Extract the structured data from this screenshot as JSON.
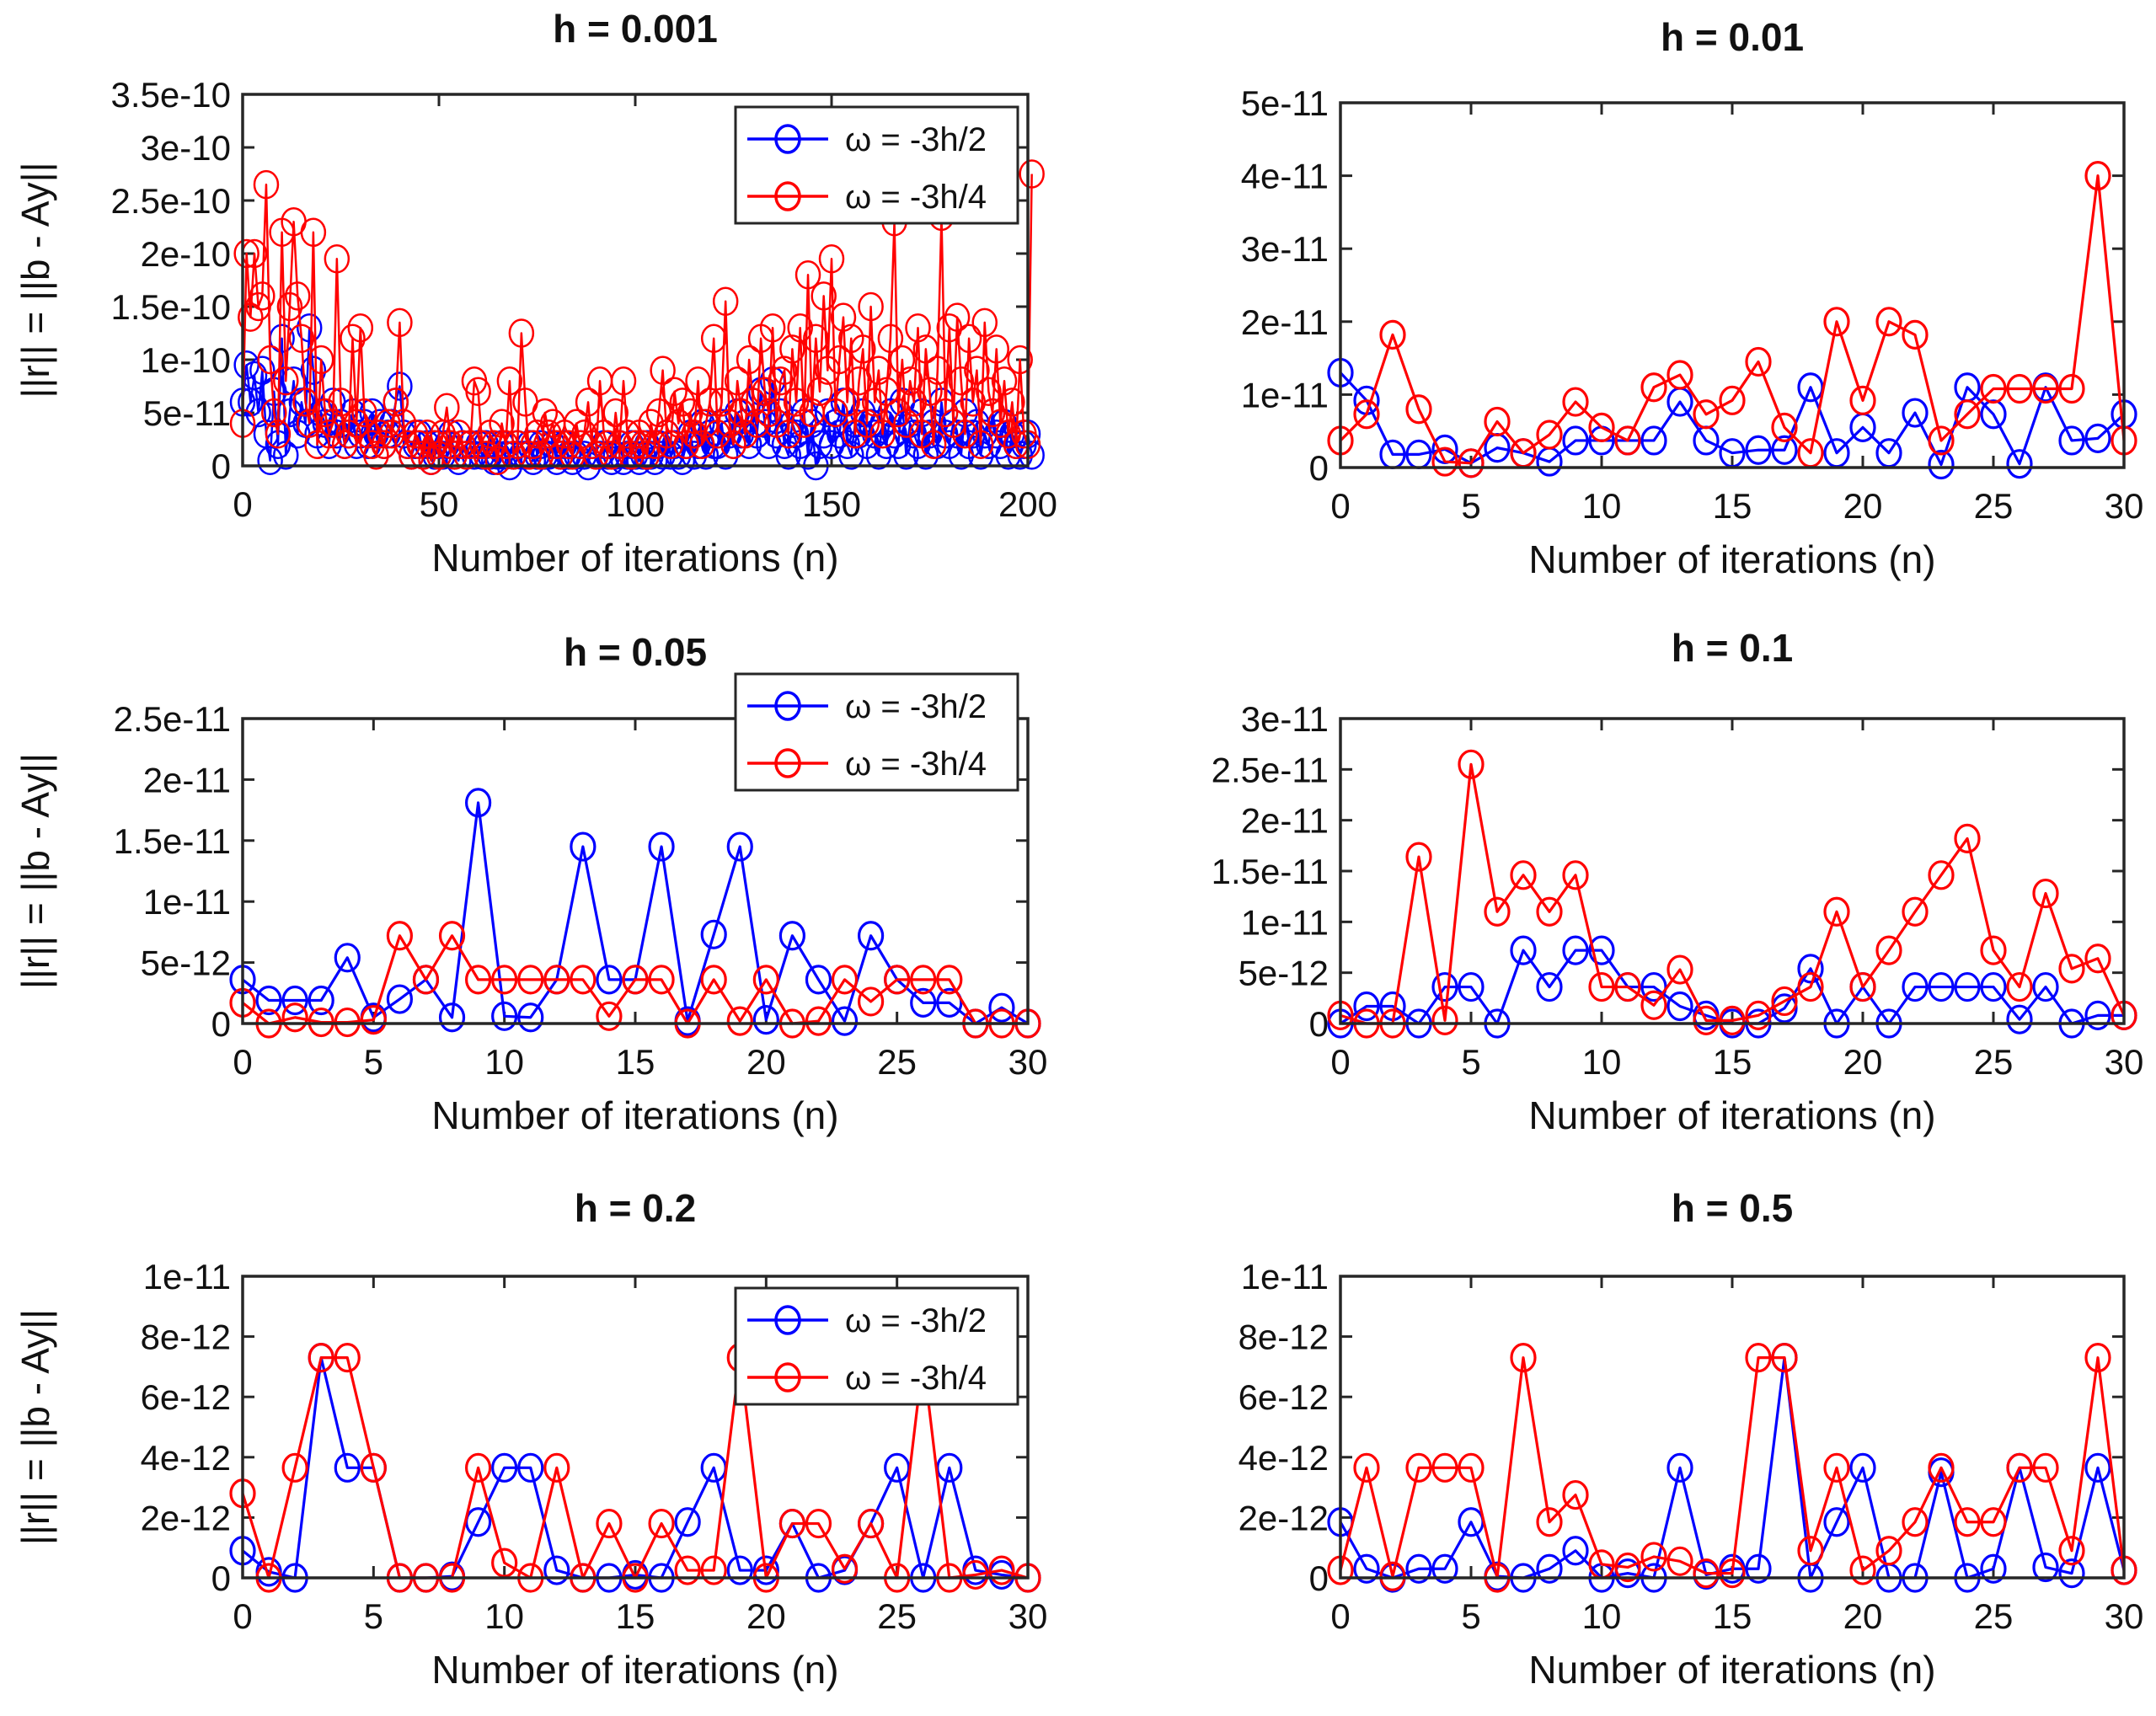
{
  "colors": {
    "series1": "#0000ff",
    "series2": "#ff0000",
    "axis": "#262626"
  },
  "legend": [
    "ω = -3h/2",
    "ω = -3h/4"
  ],
  "xlabel": "Number of iterations (n)",
  "ylabel": "||r|| = ||b - Ay||",
  "chart_data": [
    {
      "type": "line",
      "title": "h = 0.001",
      "xlim": [
        0,
        200
      ],
      "ylim": [
        0,
        3.5e-10
      ],
      "scale": 1e-11,
      "xticks": [
        "0",
        "50",
        "100",
        "150",
        "200"
      ],
      "xtick_values": [
        0,
        50,
        100,
        150,
        200
      ],
      "yticks": [
        "0",
        "5e-11",
        "1e-10",
        "1.5e-10",
        "2e-10",
        "2.5e-10",
        "3e-10",
        "3.5e-10"
      ],
      "ytick_values": [
        0,
        5,
        10,
        15,
        20,
        25,
        30,
        35
      ],
      "show_ylabel": true,
      "legend": "top-right",
      "series": [
        {
          "name": "ω = -3h/2",
          "values_x1e-11": [
            6,
            9.5,
            6,
            8.5,
            5,
            9,
            3,
            0.5,
            7,
            2,
            12,
            1,
            5,
            8,
            3,
            6,
            4,
            13,
            9,
            3,
            5,
            4,
            2,
            6,
            3,
            4,
            2,
            3,
            5,
            2,
            3,
            4,
            2,
            5,
            3,
            4,
            2,
            3,
            4,
            6,
            7.5,
            3,
            2,
            1,
            2,
            3,
            1,
            2,
            0.5,
            1,
            2,
            1,
            2,
            3,
            1,
            0.5,
            2,
            1,
            2,
            1,
            2,
            1,
            2,
            1,
            0.5,
            1,
            2,
            1,
            0,
            1,
            2,
            1,
            1,
            2,
            0.5,
            1,
            2,
            1,
            1,
            2,
            0.5,
            1,
            2,
            1,
            0.5,
            1,
            2,
            1,
            0,
            2,
            1,
            1,
            2,
            1,
            0.5,
            1,
            2,
            0.5,
            1,
            2,
            1,
            0.5,
            1,
            2,
            1,
            0.5,
            2,
            1,
            3,
            1,
            2,
            1,
            0.5,
            2,
            3,
            1,
            2,
            4,
            1,
            3,
            2,
            2,
            4,
            1,
            3,
            2,
            5,
            3,
            4,
            2,
            6,
            3,
            7,
            4,
            2,
            8,
            3,
            5,
            2,
            1,
            4,
            3,
            2,
            5,
            1,
            4,
            0,
            2,
            3,
            5,
            2,
            4,
            3,
            6,
            2,
            1,
            4,
            3,
            5,
            2,
            4,
            3,
            1,
            4,
            2,
            5,
            3,
            2,
            6,
            1,
            4,
            3,
            2,
            5,
            1,
            3,
            4,
            2,
            6,
            3,
            2,
            4,
            3,
            1,
            5,
            2,
            3,
            4,
            1,
            3,
            2,
            5,
            3,
            2,
            4,
            1,
            3,
            2,
            1,
            2,
            3,
            1
          ]
        },
        {
          "name": "ω = -3h/4",
          "values_x1e-11": [
            4,
            20,
            14,
            20,
            15,
            16,
            26.5,
            10,
            5,
            3,
            22,
            8,
            15,
            23,
            16,
            12,
            6,
            4,
            22,
            2,
            10,
            5,
            3,
            4,
            19.5,
            6,
            2,
            3,
            12,
            4,
            13,
            5,
            3,
            2,
            1,
            3,
            2,
            4,
            3,
            6,
            13.5,
            4,
            2,
            1,
            3,
            2,
            1,
            3,
            0.5,
            2,
            1,
            3,
            5.5,
            2,
            1,
            3,
            2,
            1,
            2,
            8,
            7,
            2,
            1,
            3,
            2,
            0.5,
            4,
            2,
            8,
            1,
            2,
            12.5,
            6,
            1,
            2,
            3,
            1,
            5,
            3,
            4,
            2,
            1,
            3,
            2,
            1,
            4,
            2,
            3,
            6,
            2,
            1,
            8,
            3,
            2,
            1,
            5,
            2,
            8,
            3,
            1,
            2,
            3,
            2,
            1,
            4,
            2,
            5,
            9,
            3,
            2,
            7,
            4,
            6,
            2,
            5,
            3,
            8,
            2,
            4,
            6,
            12,
            3,
            6,
            15.5,
            4,
            2,
            8,
            5,
            3,
            10,
            6,
            4,
            12,
            7,
            5,
            13,
            4,
            8,
            9,
            3,
            11,
            6,
            13,
            4,
            18,
            5,
            12,
            7,
            16,
            9,
            19.5,
            5,
            10,
            14,
            6,
            12,
            3,
            8,
            11,
            4,
            15,
            6,
            9,
            3,
            7,
            12,
            23,
            5,
            10,
            4,
            8,
            6,
            13,
            3,
            11,
            7,
            2,
            9,
            23.5,
            5,
            13,
            4,
            14,
            8,
            3,
            12,
            6,
            9,
            2,
            13.5,
            7,
            5,
            11,
            4,
            8,
            3,
            6,
            2,
            10,
            3,
            2,
            27.5
          ]
        }
      ]
    },
    {
      "type": "line",
      "title": "h = 0.01",
      "xlim": [
        0,
        30
      ],
      "ylim": [
        0,
        5e-11
      ],
      "scale": 1e-11,
      "xticks": [
        "0",
        "5",
        "10",
        "15",
        "20",
        "25",
        "30"
      ],
      "xtick_values": [
        0,
        5,
        10,
        15,
        20,
        25,
        30
      ],
      "yticks": [
        "0",
        "1e-11",
        "2e-11",
        "3e-11",
        "4e-11",
        "5e-11"
      ],
      "ytick_values": [
        0,
        1,
        2,
        3,
        4,
        5
      ],
      "show_ylabel": false,
      "legend": "none",
      "series": [
        {
          "name": "ω = -3h/2",
          "values_x1e-11": [
            1.3,
            0.92,
            0.18,
            0.18,
            0.25,
            0.06,
            0.27,
            0.2,
            0.08,
            0.37,
            0.37,
            0.37,
            0.37,
            0.9,
            0.37,
            0.2,
            0.24,
            0.24,
            1.1,
            0.2,
            0.55,
            0.2,
            0.75,
            0.04,
            1.1,
            0.73,
            0.05,
            1.1,
            0.37,
            0.4,
            0.73
          ]
        },
        {
          "name": "ω = -3h/4",
          "values_x1e-11": [
            0.37,
            0.73,
            1.82,
            0.8,
            0.08,
            0.06,
            0.63,
            0.2,
            0.45,
            0.9,
            0.55,
            0.37,
            1.1,
            1.27,
            0.73,
            0.92,
            1.45,
            0.55,
            0.2,
            2.0,
            0.92,
            2.0,
            1.82,
            0.37,
            0.73,
            1.08,
            1.08,
            1.08,
            1.08,
            4.0,
            0.37
          ]
        }
      ]
    },
    {
      "type": "line",
      "title": "h = 0.05",
      "xlim": [
        0,
        30
      ],
      "ylim": [
        0,
        2.5e-11
      ],
      "scale": 1e-12,
      "xticks": [
        "0",
        "5",
        "10",
        "15",
        "20",
        "25",
        "30"
      ],
      "xtick_values": [
        0,
        5,
        10,
        15,
        20,
        25,
        30
      ],
      "yticks": [
        "0",
        "5e-12",
        "1e-11",
        "1.5e-11",
        "2e-11",
        "2.5e-11"
      ],
      "ytick_values": [
        0,
        5,
        10,
        15,
        20,
        25
      ],
      "show_ylabel": true,
      "legend": "top-right",
      "series": [
        {
          "name": "ω = -3h/2",
          "values_x1e-12": [
            3.6,
            1.9,
            1.9,
            1.9,
            5.4,
            0.5,
            2,
            3.6,
            0.5,
            18.1,
            0.6,
            0.5,
            3.6,
            14.5,
            3.6,
            3.6,
            14.5,
            0.2,
            7.3,
            14.5,
            0.3,
            7.2,
            3.6,
            0.2,
            7.2,
            3.6,
            1.7,
            1.7,
            0,
            1.3,
            0
          ]
        },
        {
          "name": "ω = -3h/4",
          "values_x1e-12": [
            1.7,
            0,
            0.5,
            0.1,
            0.1,
            0.3,
            7.2,
            3.6,
            7.2,
            3.6,
            3.6,
            3.6,
            3.6,
            3.6,
            0.6,
            3.6,
            3.6,
            0,
            3.6,
            0.2,
            3.6,
            0,
            0.2,
            3.6,
            1.8,
            3.6,
            3.6,
            3.6,
            0,
            0,
            0
          ]
        }
      ]
    },
    {
      "type": "line",
      "title": "h = 0.1",
      "xlim": [
        0,
        30
      ],
      "ylim": [
        0,
        3e-11
      ],
      "scale": 1e-12,
      "xticks": [
        "0",
        "5",
        "10",
        "15",
        "20",
        "25",
        "30"
      ],
      "xtick_values": [
        0,
        5,
        10,
        15,
        20,
        25,
        30
      ],
      "yticks": [
        "0",
        "5e-12",
        "1e-11",
        "1.5e-11",
        "2e-11",
        "2.5e-11",
        "3e-11"
      ],
      "ytick_values": [
        0,
        5,
        10,
        15,
        20,
        25,
        30
      ],
      "show_ylabel": false,
      "legend": "none",
      "series": [
        {
          "name": "ω = -3h/2",
          "values_x1e-12": [
            0,
            1.7,
            1.7,
            0,
            3.6,
            3.6,
            0,
            7.2,
            3.6,
            7.2,
            7.2,
            3.6,
            3.6,
            1.7,
            0.8,
            0,
            0,
            1.5,
            5.4,
            0,
            3.6,
            0,
            3.6,
            3.6,
            3.6,
            3.6,
            0.4,
            3.6,
            0,
            0.8,
            0.8
          ]
        },
        {
          "name": "ω = -3h/4",
          "values_x1e-12": [
            0.8,
            0,
            0,
            16.4,
            0.3,
            25.5,
            11,
            14.6,
            11,
            14.6,
            3.6,
            3.6,
            1.8,
            5.3,
            0.3,
            0.3,
            0.8,
            2.2,
            3.6,
            11,
            3.6,
            7.2,
            11,
            14.6,
            18.2,
            7.2,
            3.6,
            12.8,
            5.4,
            6.4,
            0.8
          ]
        }
      ]
    },
    {
      "type": "line",
      "title": "h = 0.2",
      "xlim": [
        0,
        30
      ],
      "ylim": [
        0,
        1e-11
      ],
      "scale": 1e-12,
      "xticks": [
        "0",
        "5",
        "10",
        "15",
        "20",
        "25",
        "30"
      ],
      "xtick_values": [
        0,
        5,
        10,
        15,
        20,
        25,
        30
      ],
      "yticks": [
        "0",
        "2e-12",
        "4e-12",
        "6e-12",
        "8e-12",
        "1e-11"
      ],
      "ytick_values": [
        0,
        2,
        4,
        6,
        8,
        10
      ],
      "show_ylabel": true,
      "legend": "top-right",
      "series": [
        {
          "name": "ω = -3h/2",
          "values_x1e-12": [
            0.9,
            0.2,
            0,
            7.3,
            3.65,
            3.65,
            0,
            0,
            0.05,
            1.85,
            3.65,
            3.65,
            0.25,
            0,
            0,
            0.1,
            0,
            1.85,
            3.65,
            0.25,
            0.25,
            1.8,
            0,
            0.25,
            1.8,
            3.65,
            0,
            3.65,
            0.25,
            0.1,
            0
          ]
        },
        {
          "name": "ω = -3h/4",
          "values_x1e-12": [
            2.8,
            0,
            3.65,
            7.3,
            7.3,
            3.65,
            0,
            0,
            0,
            3.65,
            0.5,
            0,
            3.65,
            0,
            1.8,
            0,
            1.8,
            0.25,
            0.25,
            7.3,
            0,
            1.8,
            1.8,
            0.3,
            1.8,
            0,
            7.3,
            0,
            0.1,
            0.25,
            0
          ]
        }
      ]
    },
    {
      "type": "line",
      "title": "h = 0.5",
      "xlim": [
        0,
        30
      ],
      "ylim": [
        0,
        1e-11
      ],
      "scale": 1e-12,
      "xticks": [
        "0",
        "5",
        "10",
        "15",
        "20",
        "25",
        "30"
      ],
      "xtick_values": [
        0,
        5,
        10,
        15,
        20,
        25,
        30
      ],
      "yticks": [
        "0",
        "2e-12",
        "4e-12",
        "6e-12",
        "8e-12",
        "1e-11"
      ],
      "ytick_values": [
        0,
        2,
        4,
        6,
        8,
        10
      ],
      "show_ylabel": false,
      "legend": "none",
      "series": [
        {
          "name": "ω = -3h/2",
          "values_x1e-12": [
            1.85,
            0.3,
            0,
            0.3,
            0.3,
            1.85,
            0.05,
            0,
            0.3,
            0.9,
            0,
            0.15,
            0,
            3.65,
            0.1,
            0.3,
            0.3,
            7.3,
            0,
            1.85,
            3.65,
            0,
            0,
            3.5,
            0,
            0.3,
            3.65,
            0.35,
            0.15,
            3.65,
            0.25
          ]
        },
        {
          "name": "ω = -3h/4",
          "values_x1e-12": [
            0.25,
            3.65,
            0.05,
            3.65,
            3.65,
            3.65,
            0,
            7.3,
            1.85,
            2.75,
            0.45,
            0.35,
            0.7,
            0.55,
            0.15,
            0.15,
            7.3,
            7.3,
            0.9,
            3.65,
            0.25,
            0.9,
            1.85,
            3.65,
            1.85,
            1.85,
            3.65,
            3.65,
            0.9,
            7.3,
            0.25
          ]
        }
      ]
    }
  ]
}
